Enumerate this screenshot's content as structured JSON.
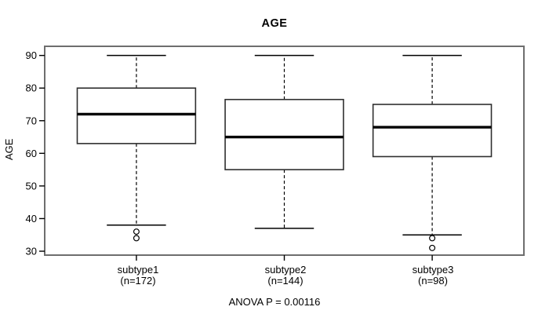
{
  "chart_data": {
    "type": "boxplot",
    "title": "AGE",
    "xlabel": "",
    "ylabel": "AGE",
    "annotation": "ANOVA P = 0.00116",
    "ylim": [
      28.8,
      92.8
    ],
    "yticks": [
      30,
      40,
      50,
      60,
      70,
      80,
      90
    ],
    "grid": false,
    "legend": null,
    "categories": [
      "subtype1",
      "subtype2",
      "subtype3"
    ],
    "series": [
      {
        "label": "subtype1",
        "n_label": "(n=172)",
        "n": 172,
        "whisker_low": 38,
        "q1": 63,
        "median": 72,
        "q3": 80,
        "whisker_high": 90,
        "outliers": [
          36,
          34
        ]
      },
      {
        "label": "subtype2",
        "n_label": "(n=144)",
        "n": 144,
        "whisker_low": 37,
        "q1": 55,
        "median": 65,
        "q3": 76.5,
        "whisker_high": 90,
        "outliers": []
      },
      {
        "label": "subtype3",
        "n_label": "(n=98)",
        "n": 98,
        "whisker_low": 35,
        "q1": 59,
        "median": 68,
        "q3": 75,
        "whisker_high": 90,
        "outliers": [
          34,
          31
        ]
      }
    ],
    "colors": {
      "background": "#ffffff",
      "frame": "#6e6e6e",
      "box_border": "#2f2f2f",
      "box_fill": "#ffffff",
      "whisker": "#000000",
      "median": "#000000",
      "text": "#000000"
    }
  }
}
